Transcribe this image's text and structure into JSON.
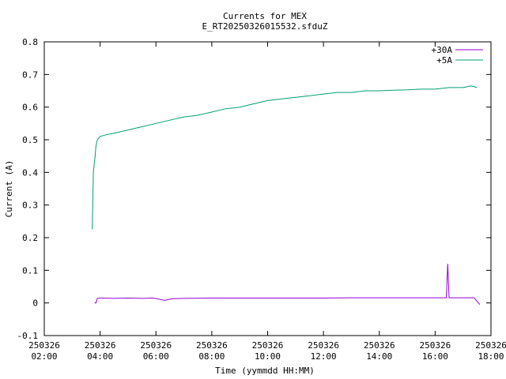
{
  "chart_data": {
    "type": "line",
    "title": "Currents for MEX",
    "subtitle": "E_RT20250326015532.sfduZ",
    "xlabel": "Time (yymmdd HH:MM)",
    "ylabel": "Current (A)",
    "xlim_hours": [
      2,
      18
    ],
    "ylim": [
      -0.1,
      0.8
    ],
    "grid": false,
    "legend_position": "top-right",
    "y_ticks": [
      "-0.1",
      "0",
      "0.1",
      "0.2",
      "0.3",
      "0.4",
      "0.5",
      "0.6",
      "0.7",
      "0.8"
    ],
    "x_ticks": [
      {
        "date": "250326",
        "time": "02:00"
      },
      {
        "date": "250326",
        "time": "04:00"
      },
      {
        "date": "250326",
        "time": "06:00"
      },
      {
        "date": "250326",
        "time": "08:00"
      },
      {
        "date": "250326",
        "time": "10:00"
      },
      {
        "date": "250326",
        "time": "12:00"
      },
      {
        "date": "250326",
        "time": "14:00"
      },
      {
        "date": "250326",
        "time": "16:00"
      },
      {
        "date": "250326",
        "time": "18:00"
      }
    ],
    "series": [
      {
        "name": "+30A",
        "color": "#9400d3",
        "x_hours": [
          3.8,
          3.85,
          3.9,
          4.0,
          4.5,
          5.0,
          5.5,
          5.9,
          6.1,
          6.3,
          6.6,
          7.0,
          8.0,
          9.0,
          10.0,
          11.0,
          12.0,
          13.0,
          14.0,
          15.0,
          16.0,
          16.4,
          16.45,
          16.5,
          17.0,
          17.4,
          17.5,
          17.6
        ],
        "values": [
          0.0,
          0.0,
          0.014,
          0.015,
          0.014,
          0.015,
          0.014,
          0.015,
          0.012,
          0.008,
          0.013,
          0.014,
          0.015,
          0.015,
          0.015,
          0.015,
          0.015,
          0.016,
          0.016,
          0.016,
          0.016,
          0.016,
          0.12,
          0.016,
          0.016,
          0.016,
          0.005,
          -0.005
        ]
      },
      {
        "name": "+5A",
        "color": "#009e73",
        "x_hours": [
          3.72,
          3.76,
          3.78,
          3.82,
          3.85,
          3.9,
          4.0,
          4.2,
          4.5,
          5.0,
          5.5,
          6.0,
          6.5,
          7.0,
          7.5,
          8.0,
          8.5,
          9.0,
          9.5,
          10.0,
          10.5,
          11.0,
          11.5,
          12.0,
          12.5,
          13.0,
          13.5,
          14.0,
          14.5,
          15.0,
          15.5,
          16.0,
          16.5,
          17.0,
          17.3,
          17.5
        ],
        "values": [
          0.225,
          0.4,
          0.42,
          0.45,
          0.48,
          0.5,
          0.51,
          0.515,
          0.52,
          0.53,
          0.54,
          0.55,
          0.56,
          0.57,
          0.575,
          0.585,
          0.595,
          0.6,
          0.61,
          0.62,
          0.625,
          0.63,
          0.635,
          0.64,
          0.645,
          0.645,
          0.65,
          0.65,
          0.652,
          0.653,
          0.655,
          0.655,
          0.66,
          0.66,
          0.665,
          0.66
        ]
      }
    ]
  }
}
